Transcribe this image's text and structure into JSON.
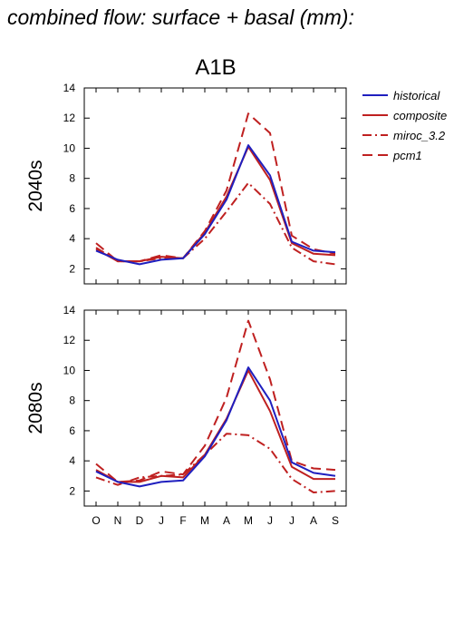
{
  "page_title": "combined flow: surface + basal (mm):",
  "chart_data": {
    "type": "line",
    "scenario": "A1B",
    "categories": [
      "O",
      "N",
      "D",
      "J",
      "F",
      "M",
      "A",
      "M",
      "J",
      "J",
      "A",
      "S"
    ],
    "legend": [
      {
        "name": "historical",
        "color": "#1f1fbf",
        "style": "solid"
      },
      {
        "name": "composite",
        "color": "#bf2020",
        "style": "solid"
      },
      {
        "name": "miroc_3.2",
        "color": "#bf2020",
        "style": "dashdot"
      },
      {
        "name": "pcm1",
        "color": "#bf2020",
        "style": "dashed"
      }
    ],
    "panels": [
      {
        "ylabel": "2040s",
        "ylim": [
          1,
          14
        ],
        "yticks": [
          2,
          4,
          6,
          8,
          10,
          12,
          14
        ],
        "series": [
          {
            "name": "historical",
            "values": [
              3.2,
              2.6,
              2.3,
              2.6,
              2.7,
              4.3,
              6.6,
              10.2,
              8.2,
              3.8,
              3.2,
              3.1
            ]
          },
          {
            "name": "composite",
            "values": [
              3.3,
              2.5,
              2.5,
              2.8,
              2.7,
              4.4,
              6.8,
              10.1,
              7.9,
              3.7,
              3.0,
              2.9
            ]
          },
          {
            "name": "miroc_3.2",
            "values": [
              3.4,
              2.5,
              2.5,
              2.7,
              2.7,
              4.0,
              5.8,
              7.7,
              6.3,
              3.4,
              2.5,
              2.3
            ]
          },
          {
            "name": "pcm1",
            "values": [
              3.7,
              2.5,
              2.5,
              2.9,
              2.7,
              4.5,
              7.2,
              12.3,
              11.0,
              4.2,
              3.3,
              3.0
            ]
          }
        ]
      },
      {
        "ylabel": "2080s",
        "ylim": [
          1,
          14
        ],
        "yticks": [
          2,
          4,
          6,
          8,
          10,
          12,
          14
        ],
        "series": [
          {
            "name": "historical",
            "values": [
              3.3,
              2.6,
              2.3,
              2.6,
              2.7,
              4.3,
              6.7,
              10.2,
              8.0,
              3.9,
              3.2,
              3.0
            ]
          },
          {
            "name": "composite",
            "values": [
              3.4,
              2.6,
              2.6,
              3.0,
              2.9,
              4.4,
              6.8,
              10.0,
              7.3,
              3.6,
              2.8,
              2.8
            ]
          },
          {
            "name": "miroc_3.2",
            "values": [
              2.9,
              2.4,
              2.9,
              3.0,
              3.1,
              4.4,
              5.8,
              5.7,
              4.8,
              2.8,
              1.9,
              2.0
            ]
          },
          {
            "name": "pcm1",
            "values": [
              3.8,
              2.6,
              2.7,
              3.3,
              3.1,
              5.0,
              8.2,
              13.3,
              9.4,
              4.0,
              3.5,
              3.4
            ]
          }
        ]
      }
    ]
  }
}
